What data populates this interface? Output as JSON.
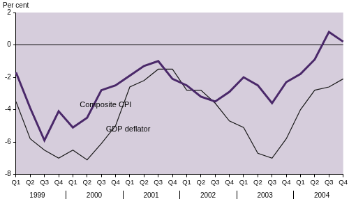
{
  "chart_data": {
    "type": "line",
    "ylabel": "Per cent",
    "categories": [
      "Q1",
      "Q2",
      "Q3",
      "Q4",
      "Q1",
      "Q2",
      "Q3",
      "Q4",
      "Q1",
      "Q2",
      "Q3",
      "Q4",
      "Q1",
      "Q2",
      "Q3",
      "Q4",
      "Q1",
      "Q2",
      "Q3",
      "Q4",
      "Q1",
      "Q2",
      "Q3",
      "Q4"
    ],
    "year_labels": [
      "1999",
      "2000",
      "2001",
      "2002",
      "2003",
      "2004"
    ],
    "series": [
      {
        "name": "Composite CPI",
        "color": "#4a2869",
        "values": [
          -1.7,
          -3.9,
          -5.9,
          -4.1,
          -5.1,
          -4.5,
          -2.8,
          -2.5,
          -1.9,
          -1.3,
          -1.0,
          -2.1,
          -2.5,
          -3.2,
          -3.5,
          -2.9,
          -2.0,
          -2.5,
          -3.6,
          -2.3,
          -1.8,
          -0.9,
          0.8,
          0.2
        ]
      },
      {
        "name": "GDP deflator",
        "color": "#1a1a1a",
        "values": [
          -3.5,
          -5.8,
          -6.5,
          -7.0,
          -6.5,
          -7.1,
          -6.1,
          -5.0,
          -2.6,
          -2.2,
          -1.5,
          -1.5,
          -2.8,
          -2.8,
          -3.6,
          -4.7,
          -5.1,
          -6.7,
          -7.0,
          -5.8,
          -4.0,
          -2.8,
          -2.6,
          -2.1
        ]
      }
    ],
    "ylim": [
      -8,
      2
    ],
    "yticks": [
      -8,
      -6,
      -4,
      -2,
      0,
      2
    ],
    "grid": false
  }
}
